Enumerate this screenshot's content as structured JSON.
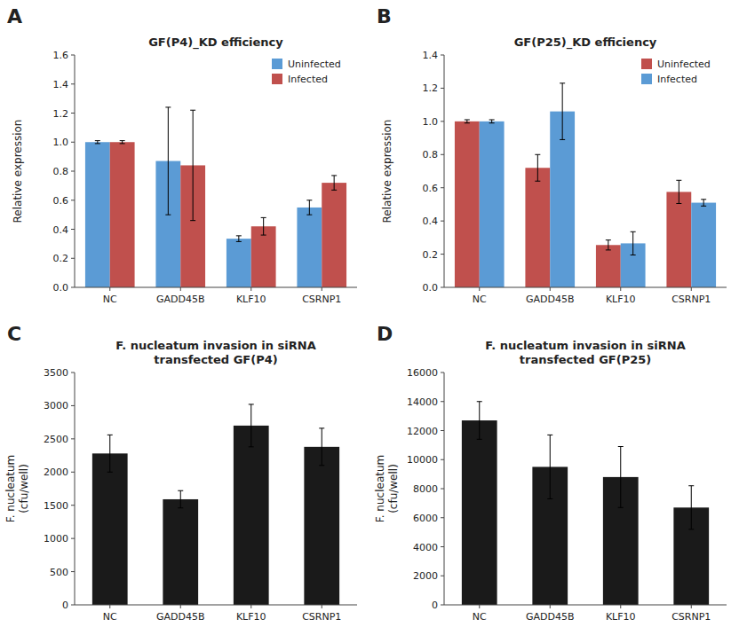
{
  "chart_data": [
    {
      "type": "bar",
      "title": "GF(P4)_KD efficiency",
      "annotations": [
        "A"
      ],
      "categories": [
        "NC",
        "GADD45B",
        "KLF10",
        "CSRNP1"
      ],
      "series": [
        {
          "name": "Uninfected",
          "color": "#5B9BD5",
          "values": [
            1.0,
            0.87,
            0.335,
            0.55
          ],
          "errors": [
            0.01,
            0.37,
            0.02,
            0.05
          ]
        },
        {
          "name": "Infected",
          "color": "#C0504D",
          "values": [
            1.0,
            0.84,
            0.42,
            0.72
          ],
          "errors": [
            0.01,
            0.38,
            0.06,
            0.05
          ]
        }
      ],
      "ylabel": "Relative expression",
      "ylim": [
        0,
        1.6
      ],
      "yticks": [
        {
          "value": 0,
          "label": "0.0"
        },
        0.2,
        0.4,
        0.6,
        0.8,
        {
          "value": 1.0,
          "label": "1.0"
        },
        1.2,
        1.4,
        1.6
      ],
      "legend": "upper right",
      "grid": false
    },
    {
      "type": "bar",
      "title": "GF(P25)_KD efficiency",
      "annotations": [
        "B"
      ],
      "categories": [
        "NC",
        "GADD45B",
        "KLF10",
        "CSRNP1"
      ],
      "series": [
        {
          "name": "Uninfected",
          "color": "#C0504D",
          "values": [
            1.0,
            0.72,
            0.255,
            0.575
          ],
          "errors": [
            0.01,
            0.08,
            0.03,
            0.07
          ]
        },
        {
          "name": "Infected",
          "color": "#5B9BD5",
          "values": [
            1.0,
            1.06,
            0.265,
            0.51
          ],
          "errors": [
            0.01,
            0.17,
            0.07,
            0.02
          ]
        }
      ],
      "ylabel": "Relative expression",
      "ylim": [
        0,
        1.4
      ],
      "yticks": [
        {
          "value": 0,
          "label": "0.0"
        },
        0.2,
        0.4,
        0.6,
        0.8,
        {
          "value": 1.0,
          "label": "1.0"
        },
        1.2,
        1.4
      ],
      "legend": "upper right",
      "grid": false
    },
    {
      "type": "bar",
      "title": "F. nucleatum invasion in siRNA\ntransfected GF(P4)",
      "annotations": [
        "C"
      ],
      "categories": [
        "NC",
        "GADD45B",
        "KLF10",
        "CSRNP1"
      ],
      "values": [
        2280,
        1590,
        2700,
        2380
      ],
      "errors": [
        280,
        130,
        320,
        280
      ],
      "color": "#1a1a1a",
      "ylabel": "F. nucleatum\n(cfu/well)",
      "ylim": [
        0,
        3500
      ],
      "yticks": [
        0,
        500,
        1000,
        1500,
        2000,
        2500,
        3000,
        3500
      ],
      "grid": false
    },
    {
      "type": "bar",
      "title": "F. nucleatum invasion in siRNA\ntransfected GF(P25)",
      "annotations": [
        "D"
      ],
      "categories": [
        "NC",
        "GADD45B",
        "KLF10",
        "CSRNP1"
      ],
      "values": [
        12700,
        9500,
        8800,
        6700
      ],
      "errors": [
        1300,
        2200,
        2100,
        1500
      ],
      "color": "#1a1a1a",
      "ylabel": "F. nucleatum\n(cfu/well)",
      "ylim": [
        0,
        16000
      ],
      "yticks": [
        0,
        2000,
        4000,
        6000,
        8000,
        10000,
        12000,
        14000,
        16000
      ],
      "grid": false
    }
  ]
}
